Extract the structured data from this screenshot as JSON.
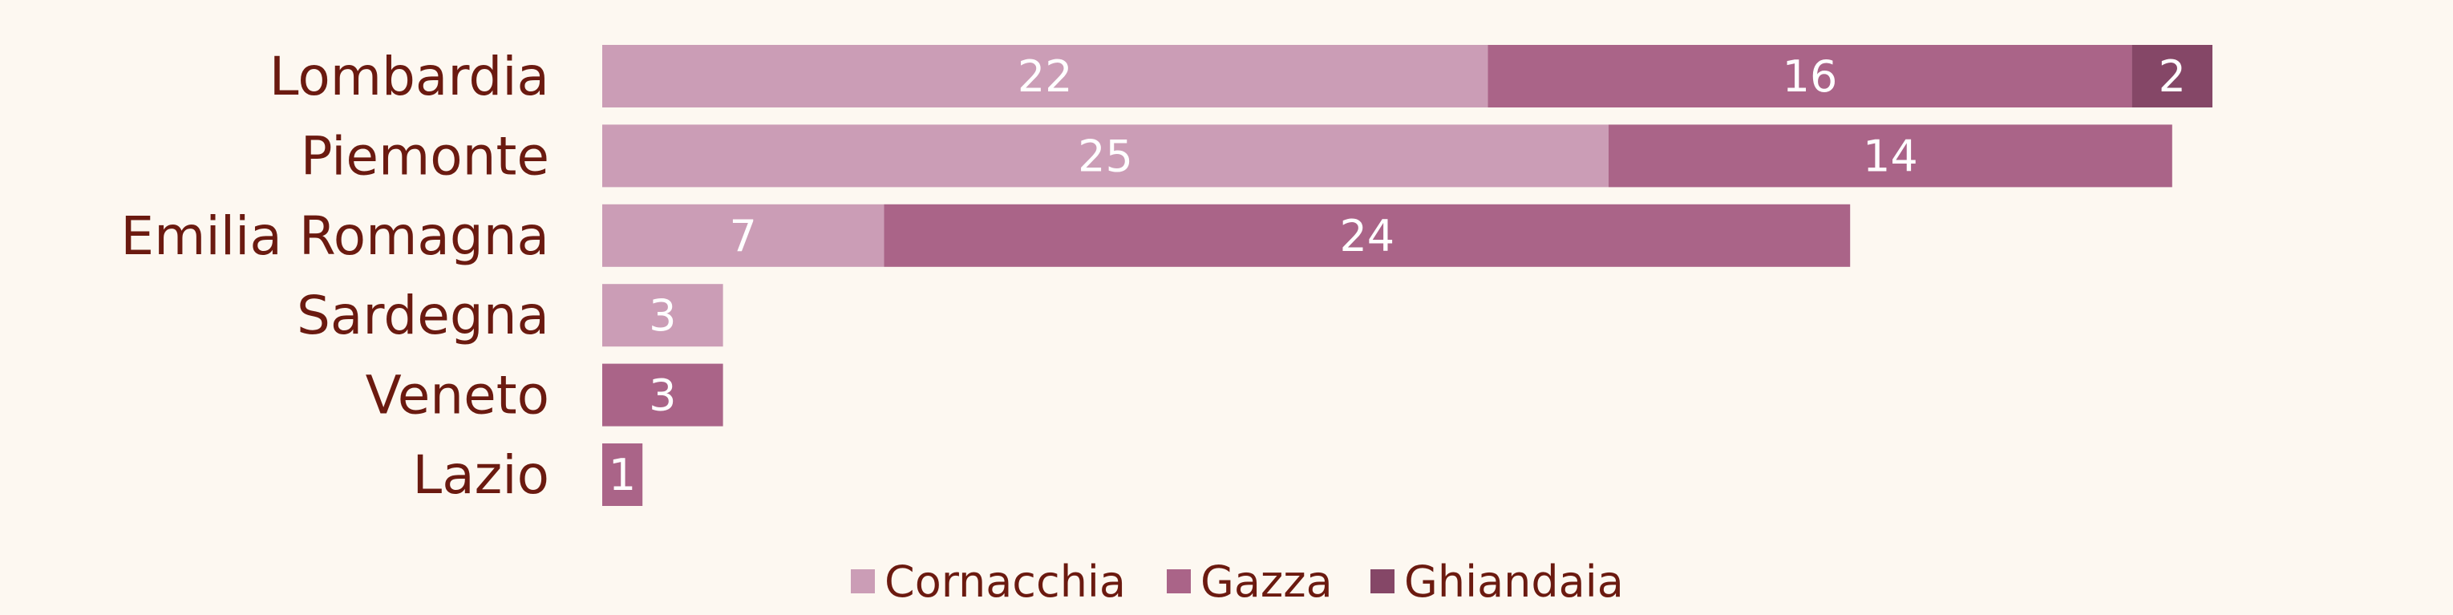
{
  "chart_data": {
    "type": "bar",
    "orientation": "horizontal",
    "stacked": true,
    "title": "",
    "xlabel": "",
    "ylabel": "",
    "categories": [
      "Lombardia",
      "Piemonte",
      "Emilia Romagna",
      "Sardegna",
      "Veneto",
      "Lazio"
    ],
    "series": [
      {
        "name": "Cornacchia",
        "color": "#cb9db6",
        "values": [
          22,
          25,
          7,
          3,
          0,
          0
        ]
      },
      {
        "name": "Gazza",
        "color": "#aa6488",
        "values": [
          16,
          14,
          24,
          0,
          3,
          1
        ]
      },
      {
        "name": "Ghiandaia",
        "color": "#854767",
        "values": [
          2,
          0,
          0,
          0,
          0,
          0
        ]
      }
    ],
    "xlim": [
      0,
      40
    ],
    "grid": false,
    "legend_position": "bottom-center",
    "data_labels": true,
    "x_axis_visible": false
  }
}
